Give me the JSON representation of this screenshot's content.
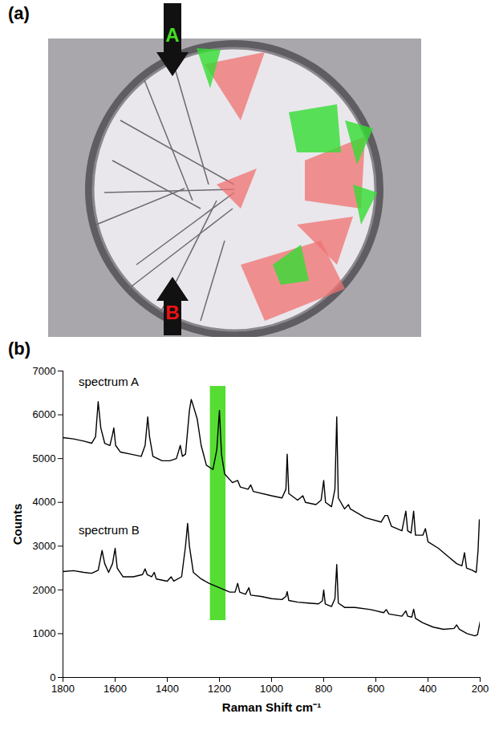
{
  "image_panel": {
    "label": "(a)",
    "arrows": [
      {
        "label": "A",
        "color": "#44dd22"
      },
      {
        "label": "B",
        "color": "#ee1111"
      }
    ]
  },
  "chart_data": {
    "type": "line",
    "title": "(b)",
    "x_label": "Raman Shift cm⁻¹",
    "y_label": "Counts",
    "xlim": [
      1800,
      200
    ],
    "xticks": [
      1800,
      1600,
      1400,
      1200,
      1000,
      800,
      600,
      400,
      200
    ],
    "ylim": [
      0,
      7000
    ],
    "yticks": [
      0,
      1000,
      2000,
      3000,
      4000,
      5000,
      6000,
      7000
    ],
    "grid": false,
    "highlight": {
      "x": [
        1235,
        1175
      ],
      "y": [
        1300,
        6650
      ],
      "color": "#55dd33"
    },
    "annotations": [
      {
        "text": "spectrum A",
        "x": 1740,
        "y": 6750
      },
      {
        "text": "spectrum B",
        "x": 1740,
        "y": 3350
      }
    ],
    "series": [
      {
        "name": "spectrum A",
        "color": "#000000",
        "x": [
          1800,
          1760,
          1720,
          1690,
          1675,
          1665,
          1655,
          1640,
          1620,
          1610,
          1605,
          1598,
          1580,
          1540,
          1500,
          1485,
          1475,
          1468,
          1455,
          1420,
          1390,
          1365,
          1350,
          1342,
          1330,
          1315,
          1308,
          1300,
          1285,
          1270,
          1250,
          1225,
          1210,
          1200,
          1192,
          1180,
          1150,
          1130,
          1120,
          1090,
          1080,
          1070,
          1000,
          960,
          945,
          940,
          934,
          900,
          880,
          870,
          830,
          810,
          800,
          793,
          770,
          757,
          750,
          744,
          720,
          705,
          698,
          640,
          580,
          565,
          555,
          540,
          500,
          485,
          478,
          465,
          455,
          448,
          420,
          410,
          400,
          360,
          320,
          290,
          270,
          260,
          252,
          230,
          215,
          208,
          203,
          200
        ],
        "values": [
          5480,
          5450,
          5400,
          5350,
          5500,
          6300,
          5700,
          5350,
          5300,
          5550,
          5700,
          5300,
          5150,
          5100,
          5050,
          5300,
          5950,
          5500,
          5050,
          4950,
          4950,
          5000,
          5300,
          5050,
          5100,
          6100,
          6350,
          6200,
          5900,
          5300,
          4850,
          4750,
          5200,
          6100,
          5100,
          4650,
          4450,
          4500,
          4350,
          4300,
          4400,
          4250,
          4150,
          4100,
          4300,
          5100,
          4200,
          4050,
          4150,
          4000,
          3950,
          4050,
          4500,
          4000,
          3900,
          4300,
          5950,
          4100,
          3850,
          3950,
          3850,
          3650,
          3550,
          3700,
          3700,
          3450,
          3350,
          3800,
          3350,
          3300,
          3800,
          3250,
          3250,
          3400,
          3100,
          2950,
          2750,
          2600,
          2550,
          2850,
          2500,
          2450,
          2400,
          2900,
          3600,
          3500
        ]
      },
      {
        "name": "spectrum B",
        "color": "#000000",
        "x": [
          1800,
          1760,
          1720,
          1690,
          1665,
          1650,
          1640,
          1625,
          1610,
          1600,
          1592,
          1570,
          1530,
          1495,
          1485,
          1477,
          1460,
          1450,
          1442,
          1400,
          1385,
          1375,
          1345,
          1330,
          1322,
          1315,
          1300,
          1270,
          1240,
          1200,
          1160,
          1140,
          1130,
          1122,
          1100,
          1087,
          1080,
          1040,
          1000,
          960,
          945,
          940,
          934,
          900,
          860,
          820,
          805,
          800,
          794,
          770,
          757,
          750,
          744,
          720,
          680,
          620,
          570,
          560,
          550,
          500,
          485,
          478,
          462,
          455,
          448,
          420,
          380,
          340,
          300,
          290,
          280,
          250,
          220,
          210,
          200
        ],
        "values": [
          2420,
          2440,
          2400,
          2380,
          2450,
          2900,
          2600,
          2400,
          2600,
          2950,
          2500,
          2300,
          2300,
          2350,
          2480,
          2350,
          2300,
          2400,
          2250,
          2200,
          2300,
          2200,
          2300,
          3000,
          3520,
          3000,
          2400,
          2250,
          2150,
          2050,
          1950,
          1950,
          2150,
          1950,
          1900,
          2050,
          1880,
          1850,
          1800,
          1780,
          1850,
          1960,
          1760,
          1720,
          1700,
          1680,
          1750,
          2000,
          1680,
          1620,
          1800,
          2580,
          1700,
          1600,
          1600,
          1550,
          1480,
          1550,
          1450,
          1400,
          1520,
          1400,
          1380,
          1560,
          1350,
          1250,
          1150,
          1100,
          1120,
          1200,
          1100,
          1000,
          950,
          980,
          1280
        ]
      }
    ]
  }
}
